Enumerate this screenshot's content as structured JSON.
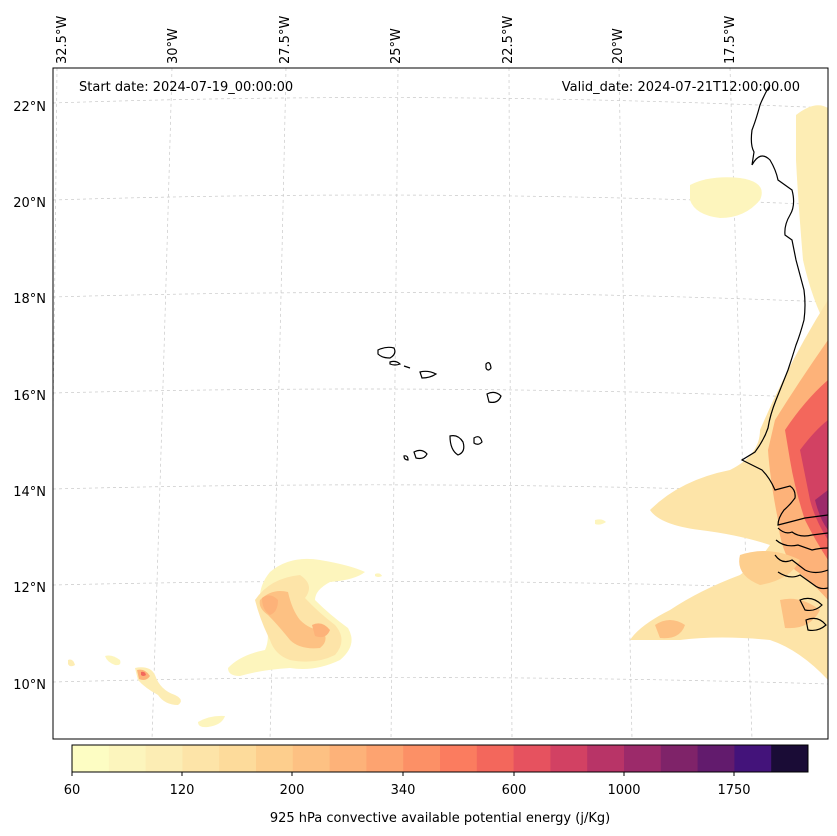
{
  "map": {
    "start_date": "Start date: 2024-07-19_00:00:00",
    "valid_date": "Valid_date: 2024-07-21T12:00:00.00",
    "lon_labels": [
      "32.5°W",
      "30°W",
      "27.5°W",
      "25°W",
      "22.5°W",
      "20°W",
      "17.5°W"
    ],
    "lat_labels": [
      "22°N",
      "20°N",
      "18°N",
      "16°N",
      "14°N",
      "12°N",
      "10°N"
    ],
    "gridlines": true
  },
  "colorbar": {
    "label": "925 hPa convective available potential energy (j/Kg)",
    "tick_labels": [
      "60",
      "120",
      "200",
      "340",
      "600",
      "1000",
      "1750"
    ],
    "colors": [
      "#fdfdc3",
      "#fcf5bd",
      "#fcedb4",
      "#fde4a8",
      "#fddb9b",
      "#fdce8d",
      "#fdc183",
      "#fdb279",
      "#fda370",
      "#fc9066",
      "#fb7c5f",
      "#f3675c",
      "#e6525f",
      "#d24163",
      "#b83467",
      "#9c2a6a",
      "#7f2369",
      "#621b6d",
      "#43137a",
      "#1a0c36"
    ]
  }
}
